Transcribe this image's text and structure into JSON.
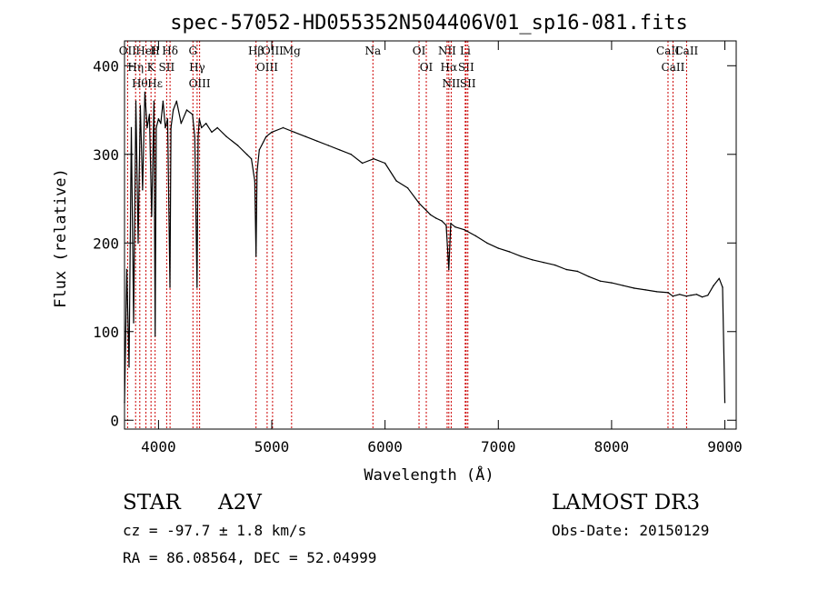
{
  "chart_data": {
    "type": "line",
    "title": "spec-57052-HD055352N504406V01_sp16-081.fits",
    "xlabel": "Wavelength (Å)",
    "ylabel": "Flux (relative)",
    "xlim": [
      3700,
      9100
    ],
    "ylim": [
      -10,
      428
    ],
    "x_ticks": [
      4000,
      5000,
      6000,
      7000,
      8000,
      9000
    ],
    "y_ticks": [
      0,
      100,
      200,
      300,
      400
    ],
    "grid": false,
    "series": [
      {
        "name": "flux",
        "x": [
          3700,
          3720,
          3740,
          3760,
          3780,
          3800,
          3820,
          3840,
          3860,
          3880,
          3900,
          3920,
          3940,
          3960,
          3970,
          3980,
          4000,
          4020,
          4040,
          4060,
          4080,
          4101,
          4110,
          4130,
          4160,
          4200,
          4250,
          4300,
          4320,
          4340,
          4350,
          4360,
          4380,
          4420,
          4470,
          4520,
          4600,
          4700,
          4780,
          4820,
          4850,
          4861,
          4870,
          4890,
          4950,
          5000,
          5100,
          5200,
          5300,
          5400,
          5500,
          5600,
          5700,
          5800,
          5900,
          6000,
          6100,
          6200,
          6300,
          6400,
          6450,
          6500,
          6540,
          6563,
          6580,
          6620,
          6700,
          6800,
          6900,
          7000,
          7100,
          7200,
          7300,
          7400,
          7500,
          7600,
          7700,
          7800,
          7900,
          8000,
          8100,
          8200,
          8300,
          8400,
          8500,
          8540,
          8600,
          8660,
          8700,
          8750,
          8800,
          8850,
          8900,
          8950,
          8980,
          9000
        ],
        "y": [
          20,
          170,
          60,
          330,
          110,
          360,
          200,
          355,
          260,
          370,
          330,
          345,
          230,
          360,
          95,
          330,
          340,
          335,
          360,
          330,
          340,
          150,
          330,
          350,
          360,
          335,
          350,
          345,
          320,
          150,
          320,
          340,
          330,
          335,
          325,
          330,
          320,
          310,
          300,
          295,
          270,
          185,
          280,
          305,
          320,
          325,
          330,
          325,
          320,
          315,
          310,
          305,
          300,
          290,
          295,
          290,
          270,
          262,
          245,
          232,
          228,
          225,
          220,
          170,
          222,
          218,
          215,
          208,
          200,
          194,
          190,
          185,
          181,
          178,
          175,
          170,
          168,
          162,
          157,
          155,
          152,
          149,
          147,
          145,
          144,
          140,
          142,
          140,
          141,
          142,
          139,
          141,
          152,
          160,
          150,
          20
        ],
        "color": "#000000"
      }
    ],
    "line_markers": [
      {
        "wavelength": 3727,
        "labels": [
          "OII"
        ]
      },
      {
        "wavelength": 3798,
        "labels": [
          "Hη"
        ]
      },
      {
        "wavelength": 3835,
        "labels": [
          "Hθ"
        ]
      },
      {
        "wavelength": 3889,
        "labels": [
          "HeI"
        ]
      },
      {
        "wavelength": 3934,
        "labels": [
          "K"
        ]
      },
      {
        "wavelength": 3970,
        "labels": [
          "Hε",
          "H"
        ]
      },
      {
        "wavelength": 4072,
        "labels": [
          "SII"
        ]
      },
      {
        "wavelength": 4102,
        "labels": [
          "Hδ"
        ]
      },
      {
        "wavelength": 4304,
        "labels": [
          "G"
        ]
      },
      {
        "wavelength": 4341,
        "labels": [
          "Hγ"
        ]
      },
      {
        "wavelength": 4363,
        "labels": [
          "OIII"
        ]
      },
      {
        "wavelength": 4861,
        "labels": [
          "Hβ"
        ]
      },
      {
        "wavelength": 4959,
        "labels": [
          "OIII"
        ]
      },
      {
        "wavelength": 5007,
        "labels": [
          "OIII"
        ]
      },
      {
        "wavelength": 5175,
        "labels": [
          "Mg"
        ]
      },
      {
        "wavelength": 5893,
        "labels": [
          "Na"
        ]
      },
      {
        "wavelength": 6300,
        "labels": [
          "OI"
        ]
      },
      {
        "wavelength": 6364,
        "labels": [
          "OI"
        ]
      },
      {
        "wavelength": 6548,
        "labels": [
          "NII"
        ]
      },
      {
        "wavelength": 6563,
        "labels": [
          "Hα"
        ]
      },
      {
        "wavelength": 6584,
        "labels": [
          "NII"
        ]
      },
      {
        "wavelength": 6708,
        "labels": [
          "Li"
        ]
      },
      {
        "wavelength": 6716,
        "labels": [
          "SII"
        ]
      },
      {
        "wavelength": 6731,
        "labels": [
          "SII"
        ]
      },
      {
        "wavelength": 8498,
        "labels": [
          "CaII"
        ]
      },
      {
        "wavelength": 8542,
        "labels": [
          "CaII"
        ]
      },
      {
        "wavelength": 8662,
        "labels": [
          "CaII"
        ]
      }
    ]
  },
  "info": {
    "object_type": "STAR",
    "subclass": "A2V",
    "survey": "LAMOST DR3",
    "cz": "cz = -97.7 ± 1.8 km/s",
    "obs_date": "Obs-Date: 20150129",
    "coords": "RA =  86.08564, DEC =  52.04999"
  },
  "colors": {
    "marker": "#cc0000",
    "axis": "#000000"
  }
}
